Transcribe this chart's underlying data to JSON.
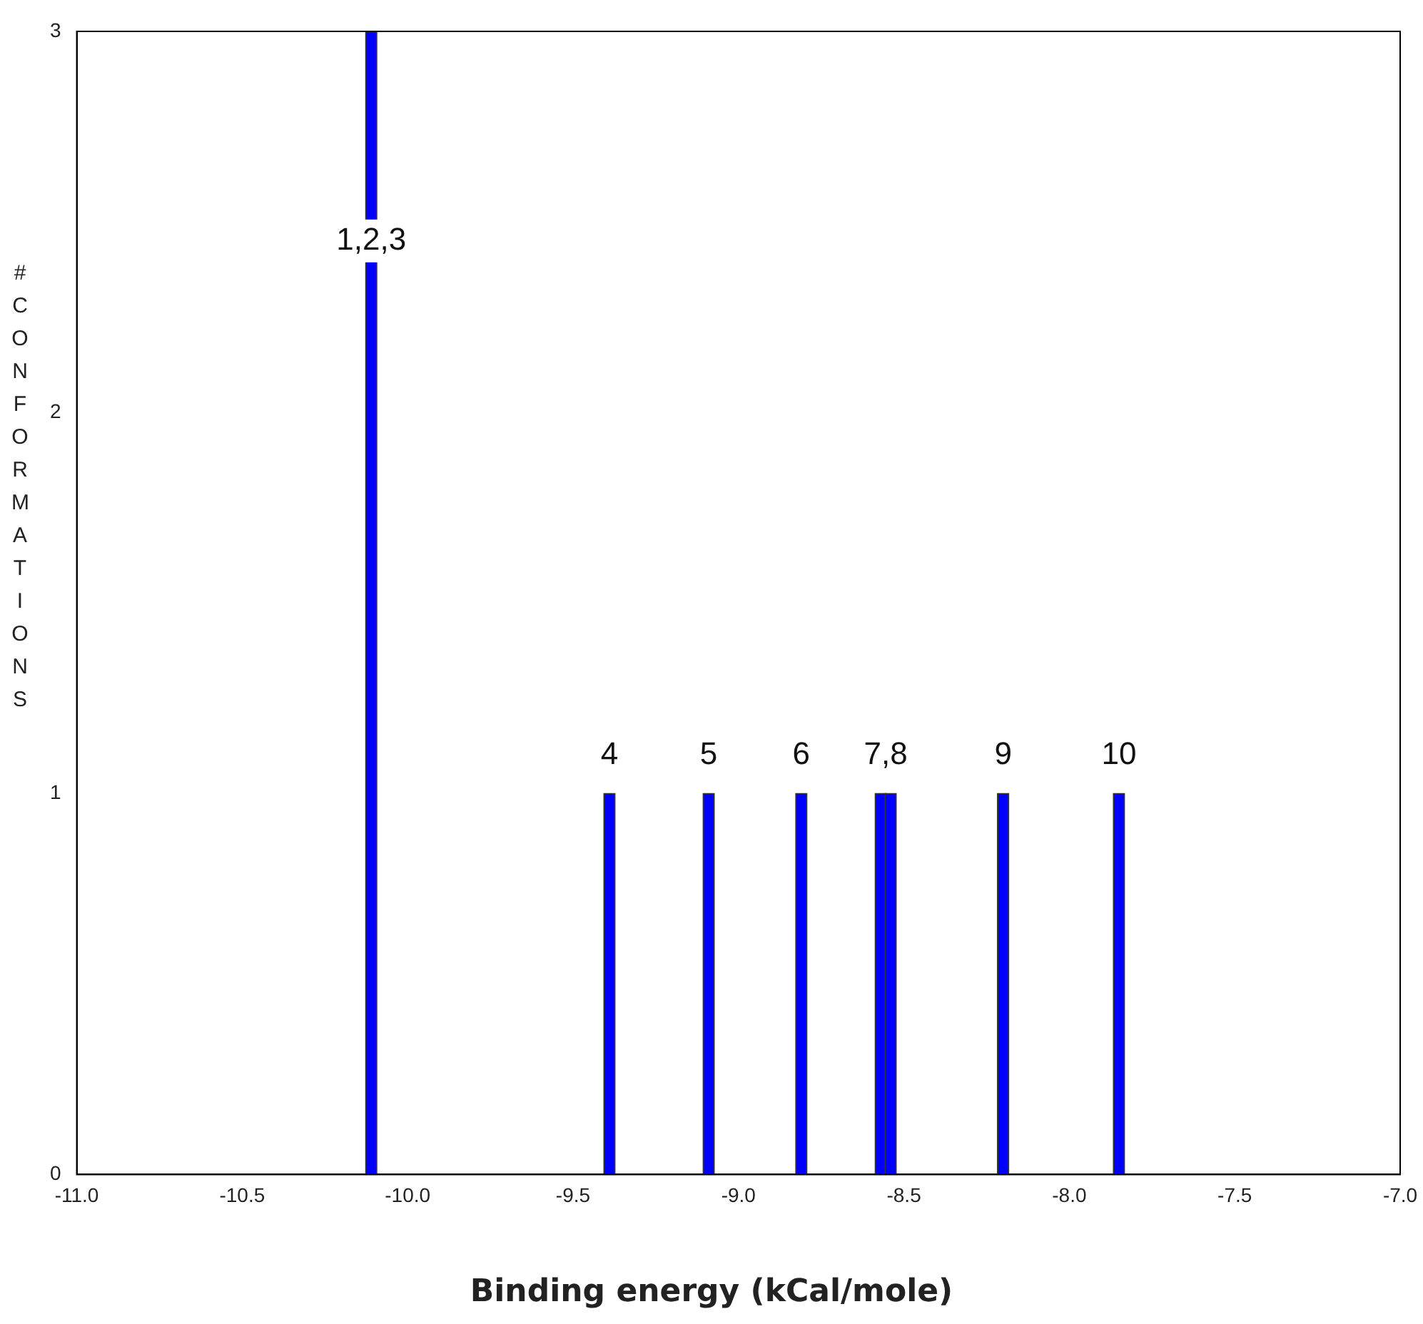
{
  "chart_data": {
    "type": "bar",
    "xlabel": "Binding energy (kCal/mole)",
    "ylabel": "#CONFORMATIONS",
    "x": [
      -10.11,
      -9.39,
      -9.09,
      -8.81,
      -8.57,
      -8.54,
      -8.2,
      -7.85
    ],
    "values": [
      3,
      1,
      1,
      1,
      1,
      1,
      1,
      1
    ],
    "color": "#0000ff",
    "xlim": [
      -11,
      -7
    ],
    "xticks": [
      {
        "value": -11,
        "label": "-11.0"
      },
      {
        "value": -10.5,
        "label": "-10.5"
      },
      {
        "value": -10,
        "label": "-10.0"
      },
      {
        "value": -9.5,
        "label": "-9.5"
      },
      {
        "value": -9,
        "label": "-9.0"
      },
      {
        "value": -8.5,
        "label": "-8.5"
      },
      {
        "value": -8,
        "label": "-8.0"
      },
      {
        "value": -7.5,
        "label": "-7.5"
      },
      {
        "value": -7,
        "label": "-7.0"
      }
    ],
    "ylim": [
      0,
      3
    ],
    "yticks": [
      0,
      1,
      2,
      3
    ],
    "grid": false,
    "legend": false,
    "annotations": [
      {
        "text": "1,2,3",
        "x": -10.11,
        "y": 2.45
      },
      {
        "text": "4",
        "x": -9.39,
        "y": 1.1
      },
      {
        "text": "5",
        "x": -9.09,
        "y": 1.1
      },
      {
        "text": "6",
        "x": -8.81,
        "y": 1.1
      },
      {
        "text": "7,8",
        "x": -8.555,
        "y": 1.1
      },
      {
        "text": "9",
        "x": -8.2,
        "y": 1.1
      },
      {
        "text": "10",
        "x": -7.85,
        "y": 1.1
      }
    ]
  }
}
